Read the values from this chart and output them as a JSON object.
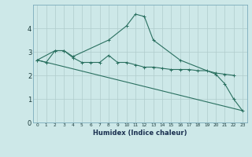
{
  "xlabel": "Humidex (Indice chaleur)",
  "background_color": "#cde8e8",
  "grid_color": "#b0cccc",
  "line_color": "#2a7060",
  "xlim": [
    -0.5,
    23.5
  ],
  "ylim": [
    0,
    5
  ],
  "ytick_values": [
    0,
    1,
    2,
    3,
    4
  ],
  "series1": {
    "x": [
      0,
      1,
      2,
      3,
      4,
      5,
      6,
      7,
      8,
      9,
      10,
      11,
      12,
      13,
      14,
      15,
      16,
      17,
      18,
      19,
      20,
      21,
      22
    ],
    "y": [
      2.65,
      2.55,
      3.05,
      3.05,
      2.75,
      2.55,
      2.55,
      2.55,
      2.85,
      2.55,
      2.55,
      2.45,
      2.35,
      2.35,
      2.3,
      2.25,
      2.25,
      2.25,
      2.2,
      2.2,
      2.1,
      2.05,
      2.0
    ]
  },
  "series2": {
    "x": [
      0,
      2,
      3,
      4,
      8,
      10,
      11,
      12,
      13,
      16,
      20,
      21,
      22,
      23
    ],
    "y": [
      2.65,
      3.05,
      3.05,
      2.8,
      3.5,
      4.1,
      4.6,
      4.5,
      3.5,
      2.65,
      2.05,
      1.65,
      1.0,
      0.5
    ]
  },
  "series3": {
    "x": [
      0,
      23
    ],
    "y": [
      2.65,
      0.5
    ]
  }
}
